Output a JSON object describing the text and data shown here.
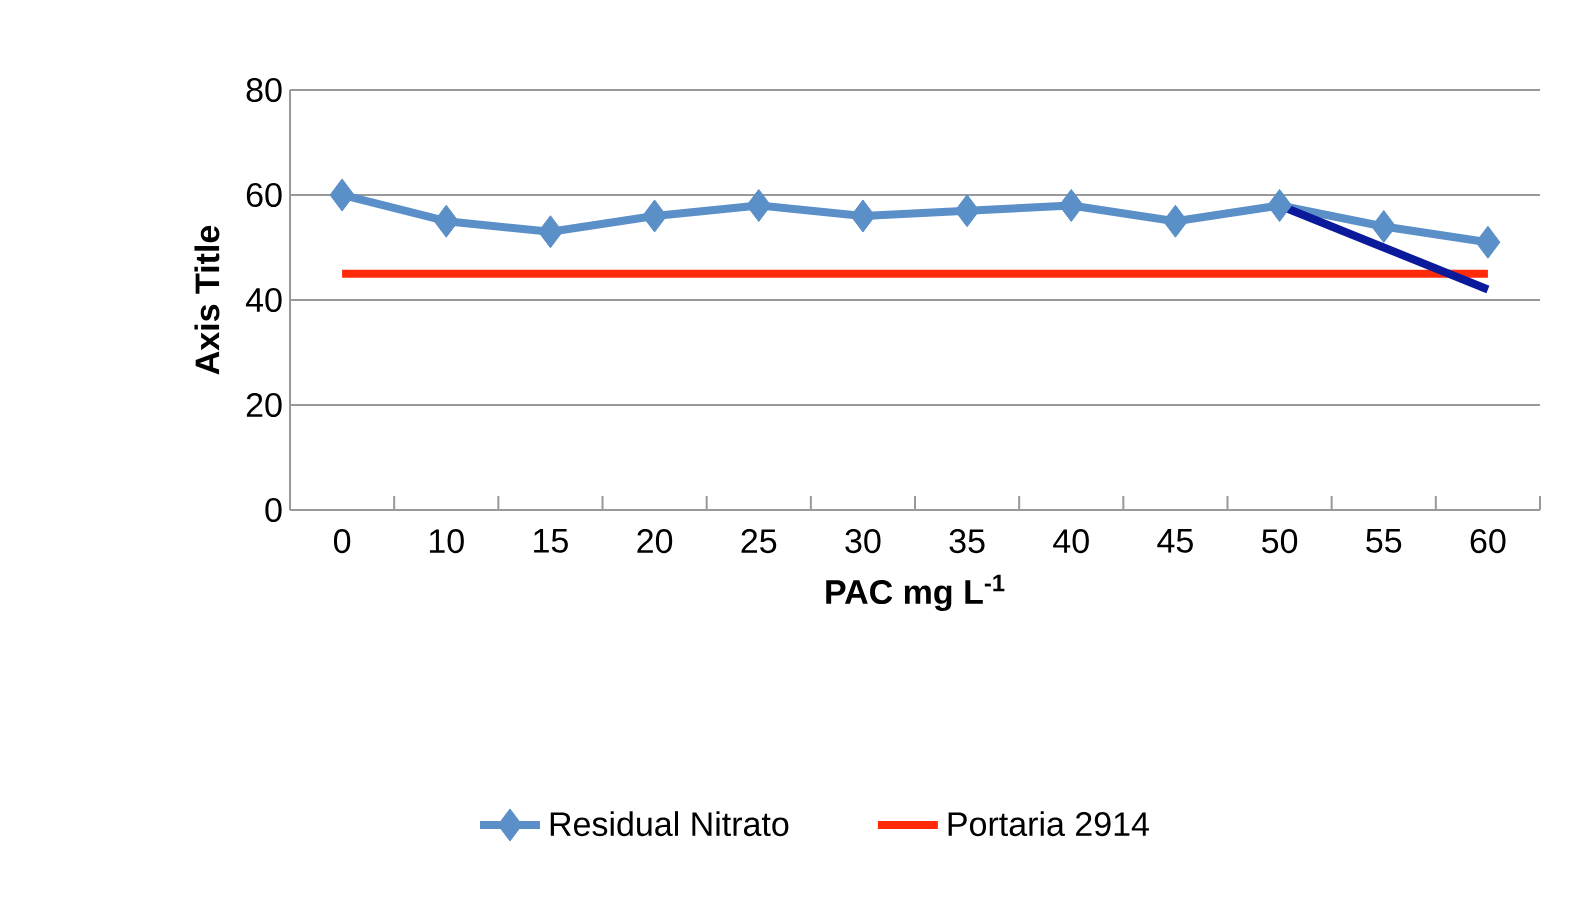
{
  "chart_data": {
    "type": "line",
    "xlabel": "PAC mg L$^{-1}$",
    "ylabel": "Axis Title",
    "categories": [
      "0",
      "10",
      "15",
      "20",
      "25",
      "30",
      "35",
      "40",
      "45",
      "50",
      "55",
      "60"
    ],
    "series": [
      {
        "name": "Residual Nitrato",
        "color": "#5b8fc8",
        "marker": "diamond",
        "values": [
          60,
          55,
          53,
          56,
          58,
          56,
          57,
          58,
          55,
          58,
          54,
          51
        ]
      },
      {
        "name": "Portaria 2914",
        "color": "#ff2a0a",
        "marker": "none",
        "values": [
          45,
          45,
          45,
          45,
          45,
          45,
          45,
          45,
          45,
          45,
          45,
          45
        ]
      },
      {
        "type": "line",
        "color": "#0a1a9a",
        "marker": "none",
        "values": [
          null,
          null,
          null,
          null,
          null,
          null,
          null,
          null,
          null,
          58,
          50,
          42
        ]
      }
    ],
    "ylim": [
      0,
      80
    ],
    "yticks": [
      0,
      20,
      40,
      60,
      80
    ],
    "grid": "y",
    "legend": "bottom"
  }
}
